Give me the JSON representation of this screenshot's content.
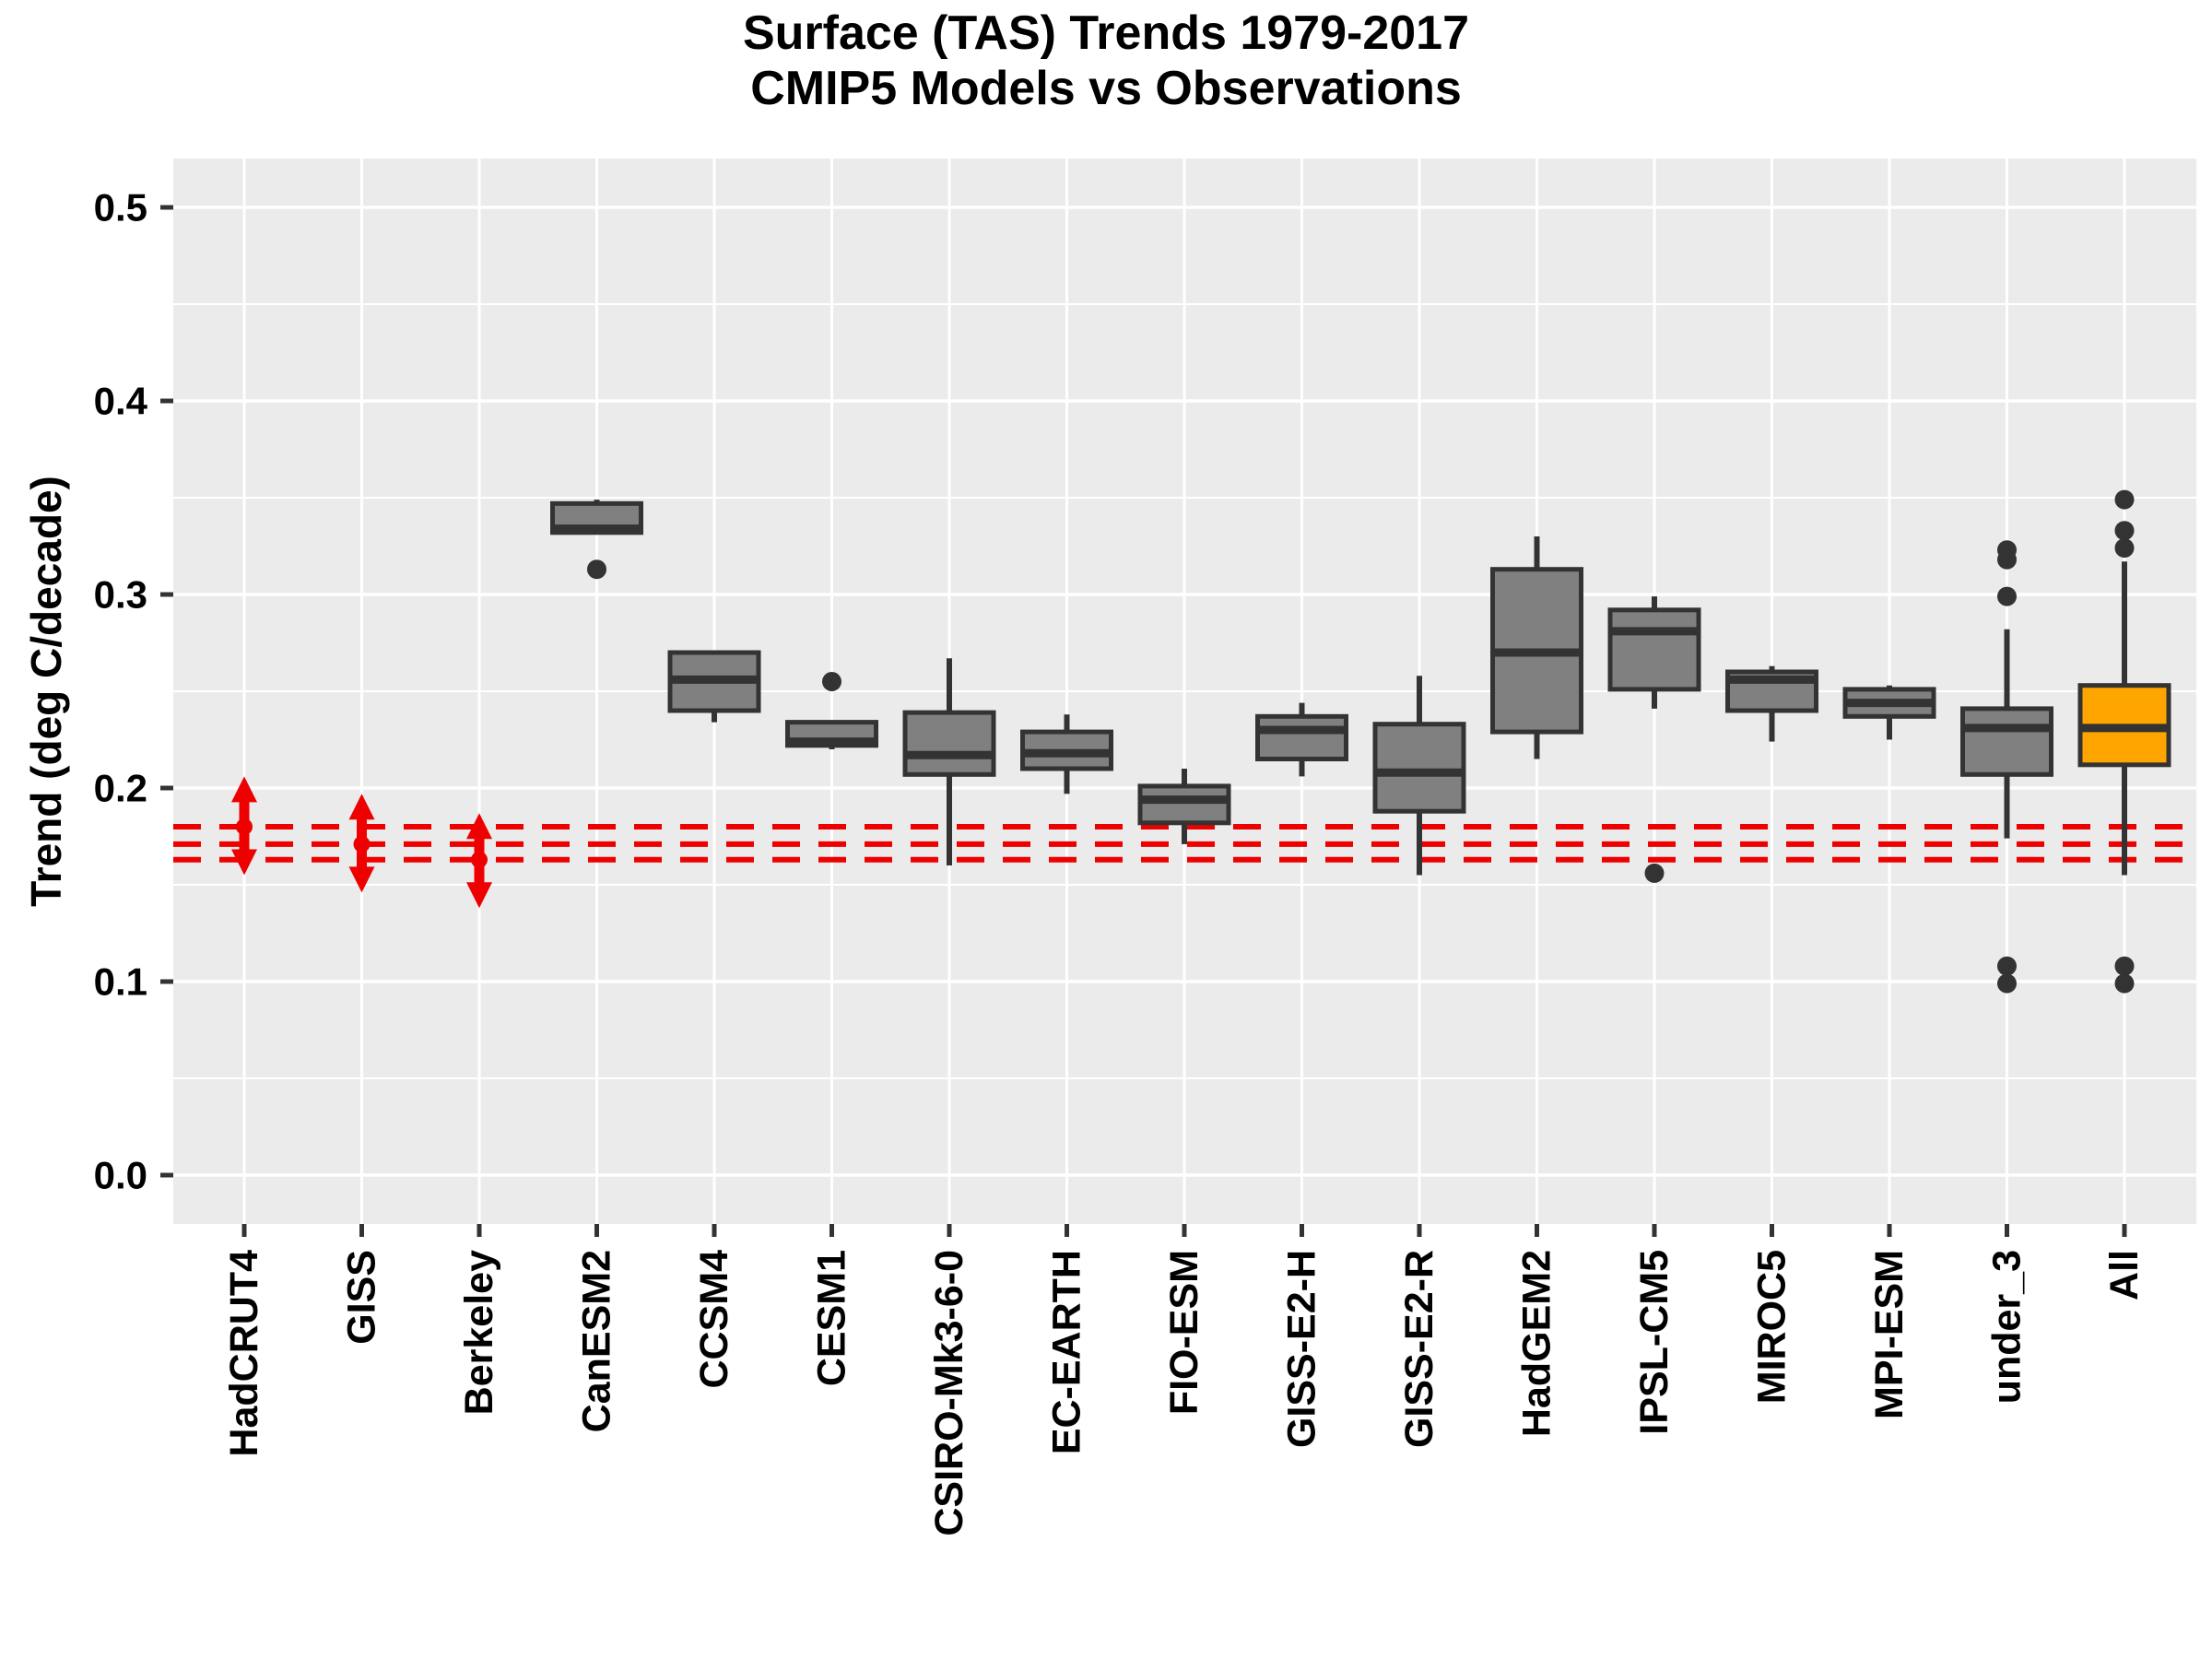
{
  "title": {
    "line1": "Surface (TAS) Trends 1979-2017",
    "line2": "CMIP5 Models vs Observations"
  },
  "axes": {
    "y_label": "Trend (deg C/decade)",
    "y_tick_labels": [
      "0.0",
      "0.1",
      "0.2",
      "0.3",
      "0.4",
      "0.5"
    ],
    "y_tick_values": [
      0.0,
      0.1,
      0.2,
      0.3,
      0.4,
      0.5
    ],
    "y_minor_values": [
      0.05,
      0.15,
      0.25,
      0.35,
      0.45
    ],
    "x_tick_labels": [
      "HadCRUT4",
      "GISS",
      "Berkeley",
      "CanESM2",
      "CCSM4",
      "CESM1",
      "CSIRO-Mk3-6-0",
      "EC-EARTH",
      "FIO-ESM",
      "GISS-E2-H",
      "GISS-E2-R",
      "HadGEM2",
      "IPSL-CM5",
      "MIROC5",
      "MPI-ESM",
      "under_3",
      "All"
    ]
  },
  "colors": {
    "panel_bg": "#EBEBEB",
    "grid": "#FFFFFF",
    "box_fill": "#808080",
    "box_stroke": "#333333",
    "highlight_fill": "#FFA500",
    "observation_red": "#EE0000",
    "text": "#000000",
    "tick": "#333333"
  },
  "chart_data": {
    "type": "boxplot",
    "title": "Surface (TAS) Trends 1979-2017  /  CMIP5 Models vs Observations",
    "xlabel": "",
    "ylabel": "Trend (deg C/decade)",
    "ylim": [
      -0.025,
      0.525
    ],
    "grid": true,
    "reference_lines": {
      "style": "dashed",
      "color": "#EE0000",
      "values": [
        0.18,
        0.171,
        0.163
      ]
    },
    "observations": [
      {
        "name": "HadCRUT4",
        "low": 0.155,
        "high": 0.206,
        "central": 0.18
      },
      {
        "name": "GISS",
        "low": 0.146,
        "high": 0.197,
        "central": 0.171
      },
      {
        "name": "Berkeley",
        "low": 0.138,
        "high": 0.187,
        "central": 0.163
      }
    ],
    "boxes": [
      {
        "name": "CanESM2",
        "min": 0.331,
        "q1": 0.332,
        "median": 0.334,
        "q3": 0.347,
        "max": 0.349,
        "outliers": [
          0.313
        ],
        "highlight": false
      },
      {
        "name": "CCSM4",
        "min": 0.234,
        "q1": 0.24,
        "median": 0.256,
        "q3": 0.27,
        "max": 0.271,
        "outliers": [],
        "highlight": false
      },
      {
        "name": "CESM1",
        "min": 0.22,
        "q1": 0.222,
        "median": 0.224,
        "q3": 0.234,
        "max": 0.234,
        "outliers": [
          0.255
        ],
        "highlight": false
      },
      {
        "name": "CSIRO-Mk3-6-0",
        "min": 0.16,
        "q1": 0.207,
        "median": 0.217,
        "q3": 0.239,
        "max": 0.267,
        "outliers": [],
        "highlight": false
      },
      {
        "name": "EC-EARTH",
        "min": 0.197,
        "q1": 0.21,
        "median": 0.218,
        "q3": 0.229,
        "max": 0.238,
        "outliers": [],
        "highlight": false
      },
      {
        "name": "FIO-ESM",
        "min": 0.171,
        "q1": 0.182,
        "median": 0.194,
        "q3": 0.201,
        "max": 0.21,
        "outliers": [],
        "highlight": false
      },
      {
        "name": "GISS-E2-H",
        "min": 0.206,
        "q1": 0.215,
        "median": 0.23,
        "q3": 0.237,
        "max": 0.244,
        "outliers": [],
        "highlight": false
      },
      {
        "name": "GISS-E2-R",
        "min": 0.155,
        "q1": 0.188,
        "median": 0.208,
        "q3": 0.233,
        "max": 0.258,
        "outliers": [],
        "highlight": false
      },
      {
        "name": "HadGEM2",
        "min": 0.215,
        "q1": 0.229,
        "median": 0.27,
        "q3": 0.313,
        "max": 0.33,
        "outliers": [],
        "highlight": false
      },
      {
        "name": "IPSL-CM5",
        "min": 0.241,
        "q1": 0.251,
        "median": 0.281,
        "q3": 0.292,
        "max": 0.299,
        "outliers": [
          0.156
        ],
        "highlight": false
      },
      {
        "name": "MIROC5",
        "min": 0.224,
        "q1": 0.24,
        "median": 0.256,
        "q3": 0.26,
        "max": 0.263,
        "outliers": [],
        "highlight": false
      },
      {
        "name": "MPI-ESM",
        "min": 0.225,
        "q1": 0.237,
        "median": 0.244,
        "q3": 0.251,
        "max": 0.253,
        "outliers": [],
        "highlight": false
      },
      {
        "name": "under_3",
        "min": 0.174,
        "q1": 0.207,
        "median": 0.231,
        "q3": 0.241,
        "max": 0.282,
        "outliers": [
          0.323,
          0.318,
          0.299,
          0.108,
          0.099
        ],
        "highlight": false
      },
      {
        "name": "All",
        "min": 0.155,
        "q1": 0.212,
        "median": 0.231,
        "q3": 0.253,
        "max": 0.317,
        "outliers": [
          0.349,
          0.333,
          0.324,
          0.108,
          0.099
        ],
        "highlight": true
      }
    ]
  }
}
